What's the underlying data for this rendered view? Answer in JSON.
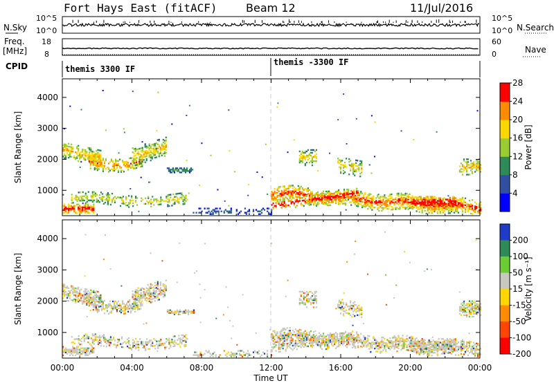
{
  "header": {
    "station": "Fort Hays East (fitACF)",
    "beam": "Beam 12",
    "date": "11/Jul/2016"
  },
  "left_labels": {
    "nsky": "N.Sky",
    "freq_line1": "Freq.",
    "freq_line2": "[MHz]",
    "cpid": "CPID"
  },
  "right_labels": {
    "nsearch": "N.Search",
    "nave": "Nave"
  },
  "top_panels": {
    "noise": {
      "left_ticks": [
        "10^5",
        "10^0"
      ],
      "right_ticks": [
        "10^5",
        "10^0"
      ]
    },
    "freq": {
      "left_ticks": [
        "18",
        "8"
      ],
      "right_ticks": [
        "60",
        "0"
      ]
    },
    "cpid": {
      "segments": [
        "themis 3300 IF",
        "themis -3300 IF"
      ],
      "boundary_hour": 12.0
    }
  },
  "chart_data": [
    {
      "type": "heatmap",
      "name": "power",
      "ylabel": "Slant Range [km]",
      "xlabel": "Time UT",
      "ylim": [
        180,
        4600
      ],
      "yticks": [
        1000,
        2000,
        3000,
        4000
      ],
      "xlim": [
        0,
        24
      ],
      "xticks": [
        0,
        4,
        8,
        12,
        16,
        20,
        24
      ],
      "xtick_labels": [
        "00:00",
        "04:00",
        "08:00",
        "12:00",
        "16:00",
        "20:00",
        "00:00"
      ],
      "colorbar": {
        "label": "Power [dB]",
        "ticks": [
          "4",
          "8",
          "12",
          "16",
          "20",
          "24",
          "28"
        ],
        "colors": [
          "#0000ff",
          "#2f4fa0",
          "#2e8b57",
          "#9acd32",
          "#ffd700",
          "#ff8c00",
          "#ff0000"
        ]
      }
    },
    {
      "type": "heatmap",
      "name": "velocity",
      "ylabel": "Slant Range [km]",
      "xlabel": "Time UT",
      "ylim": [
        180,
        4600
      ],
      "yticks": [
        1000,
        2000,
        3000,
        4000
      ],
      "xlim": [
        0,
        24
      ],
      "xticks": [
        0,
        4,
        8,
        12,
        16,
        20,
        24
      ],
      "xtick_labels": [
        "00:00",
        "04:00",
        "08:00",
        "12:00",
        "16:00",
        "20:00",
        "00:00"
      ],
      "colorbar": {
        "label": "Velocity [m s⁻¹]",
        "ticks": [
          "200",
          "100",
          "50",
          "15",
          "-15",
          "-50",
          "-100",
          "-200"
        ],
        "colors": [
          "#1e3cc8",
          "#2e8b57",
          "#6acd32",
          "#c8c8c0",
          "#ffd700",
          "#ff8c00",
          "#ff4500",
          "#ff0000"
        ]
      }
    }
  ],
  "x_axis_title": "Time UT"
}
